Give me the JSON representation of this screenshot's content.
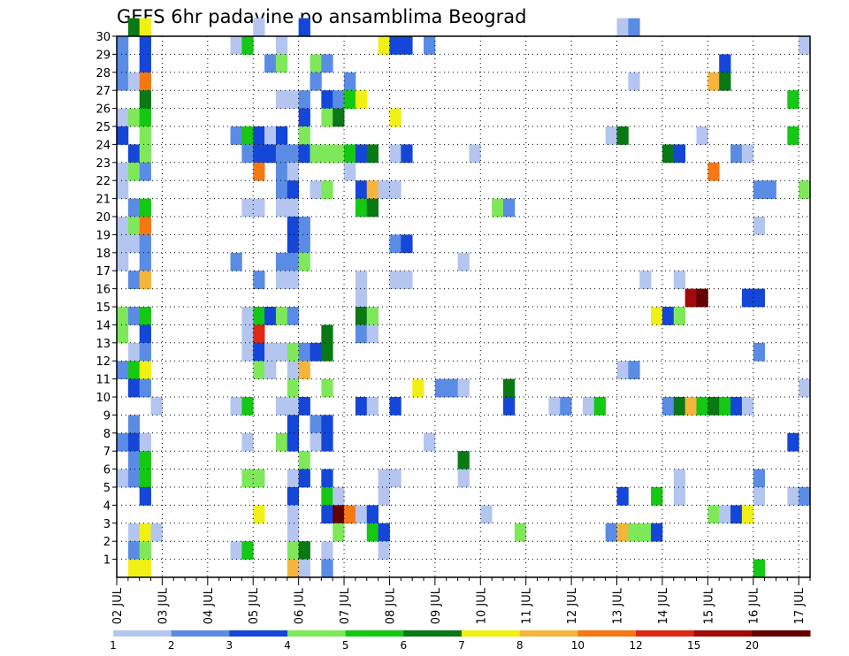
{
  "chart_data": {
    "type": "heatmap",
    "title": "GEFS 6hr padavine po ansamblima Beograd",
    "xlabel": "",
    "ylabel": "",
    "x_tick_labels": [
      "02 JUL",
      "03 JUL",
      "04 JUL",
      "05 JUL",
      "06 JUL",
      "07 JUL",
      "08 JUL",
      "09 JUL",
      "10 JUL",
      "11 JUL",
      "12 JUL",
      "13 JUL",
      "14 JUL",
      "15 JUL",
      "16 JUL",
      "17 JUL"
    ],
    "y_tick_labels": [
      "1",
      "2",
      "3",
      "4",
      "5",
      "6",
      "7",
      "8",
      "9",
      "10",
      "11",
      "12",
      "13",
      "14",
      "15",
      "16",
      "17",
      "18",
      "19",
      "20",
      "21",
      "22",
      "23",
      "24",
      "25",
      "26",
      "27",
      "28",
      "29",
      "30"
    ],
    "x_unit": "6h step from 02 JUL 00Z",
    "x_range": [
      0,
      61
    ],
    "y_range": [
      0,
      30
    ],
    "grid": true,
    "colorbar": {
      "labels": [
        "1",
        "2",
        "3",
        "4",
        "5",
        "6",
        "7",
        "8",
        "10",
        "12",
        "15",
        "20"
      ],
      "colors": [
        "#b4c6f0",
        "#5a8ce6",
        "#1446d8",
        "#7ee85a",
        "#14c814",
        "#0a7814",
        "#f0f014",
        "#f5b43c",
        "#f57814",
        "#dc2814",
        "#a00a0a",
        "#640000"
      ]
    },
    "cells": [
      [
        1,
        30,
        6
      ],
      [
        2,
        30,
        7
      ],
      [
        12,
        30,
        1
      ],
      [
        16,
        30,
        3
      ],
      [
        44,
        30,
        1
      ],
      [
        45,
        30,
        2
      ],
      [
        0,
        29,
        2
      ],
      [
        2,
        29,
        3
      ],
      [
        10,
        29,
        1
      ],
      [
        11,
        29,
        5
      ],
      [
        14,
        29,
        1
      ],
      [
        23,
        29,
        7
      ],
      [
        24,
        29,
        3
      ],
      [
        25,
        29,
        3
      ],
      [
        27,
        29,
        2
      ],
      [
        60,
        29,
        1
      ],
      [
        0,
        28,
        2
      ],
      [
        2,
        28,
        3
      ],
      [
        13,
        28,
        2
      ],
      [
        14,
        28,
        4
      ],
      [
        17,
        28,
        4
      ],
      [
        18,
        28,
        2
      ],
      [
        53,
        28,
        3
      ],
      [
        0,
        27,
        2
      ],
      [
        1,
        27,
        1
      ],
      [
        2,
        27,
        9
      ],
      [
        17,
        27,
        2
      ],
      [
        20,
        27,
        2
      ],
      [
        45,
        27,
        1
      ],
      [
        52,
        27,
        8
      ],
      [
        53,
        27,
        6
      ],
      [
        2,
        26,
        6
      ],
      [
        14,
        26,
        1
      ],
      [
        15,
        26,
        1
      ],
      [
        16,
        26,
        2
      ],
      [
        18,
        26,
        3
      ],
      [
        19,
        26,
        2
      ],
      [
        20,
        26,
        5
      ],
      [
        21,
        26,
        7
      ],
      [
        59,
        26,
        5
      ],
      [
        0,
        25,
        1
      ],
      [
        1,
        25,
        4
      ],
      [
        2,
        25,
        5
      ],
      [
        16,
        25,
        3
      ],
      [
        18,
        25,
        4
      ],
      [
        19,
        25,
        6
      ],
      [
        24,
        25,
        7
      ],
      [
        0,
        24,
        3
      ],
      [
        2,
        24,
        4
      ],
      [
        10,
        24,
        2
      ],
      [
        11,
        24,
        5
      ],
      [
        12,
        24,
        3
      ],
      [
        13,
        24,
        1
      ],
      [
        14,
        24,
        3
      ],
      [
        16,
        24,
        4
      ],
      [
        43,
        24,
        1
      ],
      [
        44,
        24,
        6
      ],
      [
        51,
        24,
        1
      ],
      [
        59,
        24,
        5
      ],
      [
        1,
        23,
        3
      ],
      [
        2,
        23,
        4
      ],
      [
        11,
        23,
        2
      ],
      [
        12,
        23,
        3
      ],
      [
        13,
        23,
        3
      ],
      [
        14,
        23,
        2
      ],
      [
        15,
        23,
        2
      ],
      [
        16,
        23,
        3
      ],
      [
        17,
        23,
        4
      ],
      [
        18,
        23,
        4
      ],
      [
        19,
        23,
        4
      ],
      [
        20,
        23,
        5
      ],
      [
        21,
        23,
        3
      ],
      [
        22,
        23,
        6
      ],
      [
        24,
        23,
        1
      ],
      [
        25,
        23,
        3
      ],
      [
        31,
        23,
        1
      ],
      [
        48,
        23,
        6
      ],
      [
        49,
        23,
        3
      ],
      [
        54,
        23,
        2
      ],
      [
        55,
        23,
        1
      ],
      [
        0,
        22,
        1
      ],
      [
        1,
        22,
        4
      ],
      [
        2,
        22,
        2
      ],
      [
        12,
        22,
        9
      ],
      [
        14,
        22,
        2
      ],
      [
        15,
        22,
        1
      ],
      [
        20,
        22,
        1
      ],
      [
        52,
        22,
        9
      ],
      [
        0,
        21,
        1
      ],
      [
        14,
        21,
        2
      ],
      [
        15,
        21,
        3
      ],
      [
        17,
        21,
        1
      ],
      [
        18,
        21,
        4
      ],
      [
        21,
        21,
        3
      ],
      [
        22,
        21,
        8
      ],
      [
        23,
        21,
        1
      ],
      [
        24,
        21,
        1
      ],
      [
        56,
        21,
        2
      ],
      [
        57,
        21,
        2
      ],
      [
        60,
        21,
        4
      ],
      [
        1,
        20,
        2
      ],
      [
        2,
        20,
        5
      ],
      [
        11,
        20,
        1
      ],
      [
        12,
        20,
        1
      ],
      [
        14,
        20,
        1
      ],
      [
        15,
        20,
        1
      ],
      [
        21,
        20,
        5
      ],
      [
        22,
        20,
        6
      ],
      [
        33,
        20,
        4
      ],
      [
        34,
        20,
        2
      ],
      [
        0,
        19,
        1
      ],
      [
        1,
        19,
        4
      ],
      [
        2,
        19,
        9
      ],
      [
        15,
        19,
        3
      ],
      [
        16,
        19,
        2
      ],
      [
        56,
        19,
        1
      ],
      [
        0,
        18,
        1
      ],
      [
        1,
        18,
        1
      ],
      [
        2,
        18,
        2
      ],
      [
        15,
        18,
        3
      ],
      [
        16,
        18,
        2
      ],
      [
        24,
        18,
        2
      ],
      [
        25,
        18,
        3
      ],
      [
        0,
        17,
        1
      ],
      [
        2,
        17,
        2
      ],
      [
        10,
        17,
        2
      ],
      [
        14,
        17,
        2
      ],
      [
        15,
        17,
        2
      ],
      [
        16,
        17,
        4
      ],
      [
        30,
        17,
        1
      ],
      [
        1,
        16,
        2
      ],
      [
        2,
        16,
        8
      ],
      [
        12,
        16,
        2
      ],
      [
        14,
        16,
        1
      ],
      [
        15,
        16,
        1
      ],
      [
        21,
        16,
        1
      ],
      [
        24,
        16,
        1
      ],
      [
        25,
        16,
        1
      ],
      [
        46,
        16,
        1
      ],
      [
        49,
        16,
        1
      ],
      [
        21,
        15,
        1
      ],
      [
        50,
        15,
        11
      ],
      [
        51,
        15,
        12
      ],
      [
        55,
        15,
        3
      ],
      [
        56,
        15,
        3
      ],
      [
        0,
        14,
        4
      ],
      [
        1,
        14,
        2
      ],
      [
        2,
        14,
        5
      ],
      [
        11,
        14,
        1
      ],
      [
        12,
        14,
        5
      ],
      [
        13,
        14,
        3
      ],
      [
        14,
        14,
        4
      ],
      [
        15,
        14,
        2
      ],
      [
        21,
        14,
        6
      ],
      [
        22,
        14,
        4
      ],
      [
        47,
        14,
        7
      ],
      [
        48,
        14,
        3
      ],
      [
        49,
        14,
        4
      ],
      [
        0,
        13,
        4
      ],
      [
        2,
        13,
        3
      ],
      [
        11,
        13,
        1
      ],
      [
        12,
        13,
        10
      ],
      [
        18,
        13,
        6
      ],
      [
        21,
        13,
        2
      ],
      [
        22,
        13,
        1
      ],
      [
        1,
        12,
        1
      ],
      [
        2,
        12,
        2
      ],
      [
        11,
        12,
        1
      ],
      [
        12,
        12,
        3
      ],
      [
        13,
        12,
        1
      ],
      [
        14,
        12,
        1
      ],
      [
        15,
        12,
        4
      ],
      [
        16,
        12,
        2
      ],
      [
        17,
        12,
        3
      ],
      [
        18,
        12,
        6
      ],
      [
        56,
        12,
        2
      ],
      [
        0,
        11,
        2
      ],
      [
        1,
        11,
        5
      ],
      [
        2,
        11,
        7
      ],
      [
        12,
        11,
        4
      ],
      [
        13,
        11,
        1
      ],
      [
        15,
        11,
        1
      ],
      [
        16,
        11,
        8
      ],
      [
        44,
        11,
        1
      ],
      [
        45,
        11,
        2
      ],
      [
        1,
        10,
        3
      ],
      [
        2,
        10,
        2
      ],
      [
        15,
        10,
        4
      ],
      [
        18,
        10,
        4
      ],
      [
        26,
        10,
        7
      ],
      [
        28,
        10,
        2
      ],
      [
        29,
        10,
        2
      ],
      [
        30,
        10,
        1
      ],
      [
        34,
        10,
        6
      ],
      [
        60,
        10,
        1
      ],
      [
        3,
        9,
        1
      ],
      [
        10,
        9,
        1
      ],
      [
        11,
        9,
        5
      ],
      [
        14,
        9,
        1
      ],
      [
        15,
        9,
        1
      ],
      [
        16,
        9,
        3
      ],
      [
        21,
        9,
        3
      ],
      [
        22,
        9,
        1
      ],
      [
        24,
        9,
        3
      ],
      [
        34,
        9,
        3
      ],
      [
        38,
        9,
        1
      ],
      [
        39,
        9,
        2
      ],
      [
        41,
        9,
        1
      ],
      [
        42,
        9,
        5
      ],
      [
        48,
        9,
        2
      ],
      [
        49,
        9,
        6
      ],
      [
        50,
        9,
        8
      ],
      [
        51,
        9,
        5
      ],
      [
        52,
        9,
        6
      ],
      [
        53,
        9,
        5
      ],
      [
        54,
        9,
        3
      ],
      [
        55,
        9,
        1
      ],
      [
        1,
        8,
        2
      ],
      [
        15,
        8,
        3
      ],
      [
        17,
        8,
        2
      ],
      [
        18,
        8,
        3
      ],
      [
        0,
        7,
        2
      ],
      [
        1,
        7,
        3
      ],
      [
        2,
        7,
        1
      ],
      [
        11,
        7,
        1
      ],
      [
        14,
        7,
        4
      ],
      [
        15,
        7,
        3
      ],
      [
        17,
        7,
        1
      ],
      [
        18,
        7,
        3
      ],
      [
        27,
        7,
        1
      ],
      [
        59,
        7,
        3
      ],
      [
        1,
        6,
        2
      ],
      [
        2,
        6,
        5
      ],
      [
        16,
        6,
        4
      ],
      [
        30,
        6,
        6
      ],
      [
        0,
        5,
        1
      ],
      [
        1,
        5,
        2
      ],
      [
        2,
        5,
        5
      ],
      [
        11,
        5,
        4
      ],
      [
        12,
        5,
        4
      ],
      [
        15,
        5,
        1
      ],
      [
        16,
        5,
        3
      ],
      [
        18,
        5,
        3
      ],
      [
        23,
        5,
        1
      ],
      [
        24,
        5,
        1
      ],
      [
        30,
        5,
        1
      ],
      [
        49,
        5,
        1
      ],
      [
        56,
        5,
        2
      ],
      [
        2,
        4,
        3
      ],
      [
        15,
        4,
        3
      ],
      [
        18,
        4,
        5
      ],
      [
        19,
        4,
        1
      ],
      [
        23,
        4,
        1
      ],
      [
        44,
        4,
        3
      ],
      [
        47,
        4,
        5
      ],
      [
        49,
        4,
        1
      ],
      [
        56,
        4,
        1
      ],
      [
        59,
        4,
        1
      ],
      [
        60,
        4,
        2
      ],
      [
        12,
        3,
        7
      ],
      [
        15,
        3,
        1
      ],
      [
        18,
        3,
        3
      ],
      [
        19,
        3,
        12
      ],
      [
        20,
        3,
        9
      ],
      [
        21,
        3,
        1
      ],
      [
        22,
        3,
        3
      ],
      [
        32,
        3,
        1
      ],
      [
        52,
        3,
        4
      ],
      [
        53,
        3,
        1
      ],
      [
        54,
        3,
        3
      ],
      [
        55,
        3,
        7
      ],
      [
        1,
        2,
        1
      ],
      [
        2,
        2,
        7
      ],
      [
        3,
        2,
        1
      ],
      [
        15,
        2,
        1
      ],
      [
        19,
        2,
        4
      ],
      [
        22,
        2,
        5
      ],
      [
        23,
        2,
        3
      ],
      [
        35,
        2,
        4
      ],
      [
        43,
        2,
        2
      ],
      [
        44,
        2,
        8
      ],
      [
        45,
        2,
        4
      ],
      [
        46,
        2,
        4
      ],
      [
        47,
        2,
        3
      ],
      [
        1,
        1,
        2
      ],
      [
        2,
        1,
        4
      ],
      [
        10,
        1,
        1
      ],
      [
        11,
        1,
        5
      ],
      [
        15,
        1,
        4
      ],
      [
        16,
        1,
        6
      ],
      [
        18,
        1,
        1
      ],
      [
        23,
        1,
        1
      ],
      [
        1,
        0,
        7
      ],
      [
        2,
        0,
        7
      ],
      [
        15,
        0,
        8
      ],
      [
        16,
        0,
        1
      ],
      [
        18,
        0,
        2
      ],
      [
        56,
        0,
        5
      ]
    ]
  }
}
